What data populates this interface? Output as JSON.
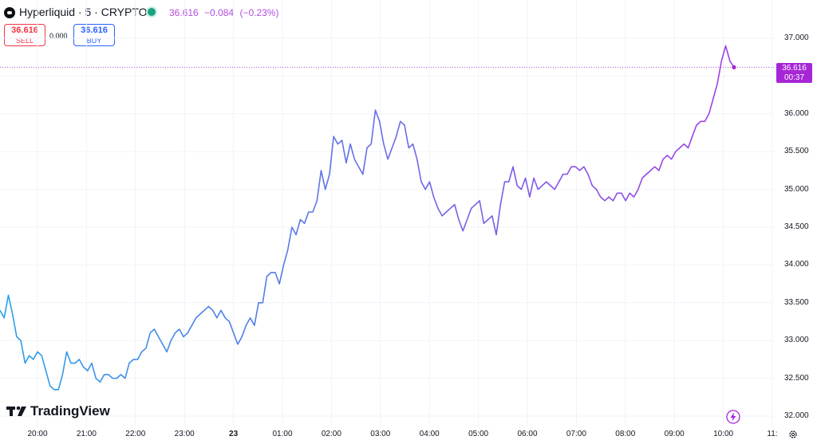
{
  "header": {
    "symbol": "Hyperliquid · 5 · CRYPTO",
    "last": "36.616",
    "change": "−0.084",
    "change_pct": "(−0.23%)",
    "sell_price": "36.616",
    "sell_label": "SELL",
    "spread": "0.000",
    "buy_price": "36.616",
    "buy_label": "BUY",
    "live_icon": "live-status-dot"
  },
  "price_label": {
    "price": "36.616",
    "countdown": "00:37"
  },
  "brand": "TradingView",
  "icons": {
    "logo": "hyperliquid-logo",
    "brand": "tradingview-logo-icon",
    "bolt": "bolt-icon",
    "settings": "gear-icon"
  },
  "colors": {
    "line_start": "#2aa0e8",
    "line_end": "#a23ee6",
    "price": "#a626d6",
    "sell": "#f23645",
    "buy": "#2962ff"
  },
  "chart_data": {
    "type": "line",
    "title": "Hyperliquid · 5 · CRYPTO",
    "xlabel": "",
    "ylabel": "",
    "x_ticks": [
      "20:00",
      "21:00",
      "22:00",
      "23:00",
      "23",
      "01:00",
      "02:00",
      "03:00",
      "04:00",
      "05:00",
      "06:00",
      "07:00",
      "08:00",
      "09:00",
      "10:00",
      "11:"
    ],
    "y_ticks": [
      "37.000",
      "36.500",
      "36.000",
      "35.500",
      "35.000",
      "34.500",
      "34.000",
      "33.500",
      "33.000",
      "32.500",
      "32.000"
    ],
    "ylim": [
      32.0,
      37.0
    ],
    "current_price": 36.616,
    "grid": true,
    "series": [
      {
        "values": [
          33.4,
          33.3,
          33.6,
          33.35,
          33.05,
          33.0,
          32.7,
          32.8,
          32.75,
          32.85,
          32.8,
          32.6,
          32.4,
          32.35,
          32.35,
          32.55,
          32.85,
          32.7,
          32.7,
          32.75,
          32.65,
          32.6,
          32.7,
          32.5,
          32.45,
          32.55,
          32.55,
          32.5,
          32.5,
          32.55,
          32.5,
          32.7,
          32.75,
          32.75,
          32.85,
          32.9,
          33.1,
          33.15,
          33.05,
          32.95,
          32.85,
          33.0,
          33.1,
          33.15,
          33.05,
          33.1,
          33.2,
          33.3,
          33.35,
          33.4,
          33.45,
          33.4,
          33.3,
          33.4,
          33.3,
          33.25,
          33.1,
          32.95,
          33.05,
          33.2,
          33.3,
          33.2,
          33.5,
          33.5,
          33.85,
          33.9,
          33.9,
          33.75,
          34.0,
          34.2,
          34.5,
          34.4,
          34.6,
          34.55,
          34.7,
          34.7,
          34.85,
          35.25,
          35.0,
          35.2,
          35.7,
          35.6,
          35.65,
          35.35,
          35.6,
          35.4,
          35.3,
          35.2,
          35.55,
          35.6,
          36.05,
          35.9,
          35.6,
          35.4,
          35.55,
          35.7,
          35.9,
          35.85,
          35.55,
          35.6,
          35.4,
          35.1,
          35.0,
          35.1,
          34.9,
          34.75,
          34.65,
          34.7,
          34.75,
          34.8,
          34.6,
          34.45,
          34.6,
          34.75,
          34.8,
          34.85,
          34.55,
          34.6,
          34.65,
          34.4,
          34.8,
          35.1,
          35.1,
          35.3,
          35.05,
          35.0,
          35.15,
          34.9,
          35.15,
          35.0,
          35.05,
          35.1,
          35.05,
          35.0,
          35.1,
          35.2,
          35.2,
          35.3,
          35.3,
          35.25,
          35.3,
          35.2,
          35.05,
          35.0,
          34.9,
          34.85,
          34.9,
          34.85,
          34.95,
          34.95,
          34.85,
          34.95,
          34.9,
          35.0,
          35.15,
          35.2,
          35.25,
          35.3,
          35.25,
          35.4,
          35.45,
          35.4,
          35.5,
          35.55,
          35.6,
          35.55,
          35.7,
          35.85,
          35.9,
          35.9,
          36.0,
          36.2,
          36.4,
          36.7,
          36.9,
          36.7,
          36.616
        ]
      }
    ]
  }
}
